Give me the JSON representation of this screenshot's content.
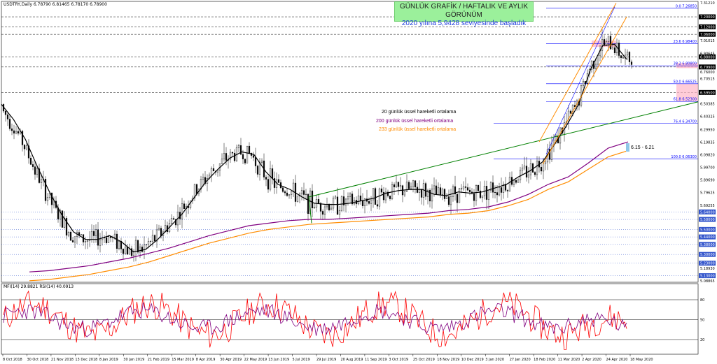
{
  "header": {
    "symbol_line": "USDTRY,Daily  6.78790 6.81465 6.78170 6.78900",
    "indicator_line": "MFI(14) 29.8821  RSI(14) 40.0913"
  },
  "banner": {
    "line1": "GÜNLÜK GRAFİK / HAFTALIK VE AYLIK GÖRÜNÜM",
    "line2": "2020 yılına 5,9428 seviyesinde başladık"
  },
  "legend": {
    "ema20": "20 günlük üssel hareketli ortalama",
    "ema200": "200 günlük üssel hareketli ortalama",
    "ema233": "233 günlük üssel hareketli ortalama"
  },
  "annotation": "6.15 - 6.21",
  "colors": {
    "price": "#000000",
    "ema20": "#000000",
    "ema200": "#800080",
    "ema233": "#ff8c00",
    "trendline": "#008000",
    "channel": "#ff8c00",
    "mfi": "#ff0000",
    "rsi": "#800080",
    "fib": "#0000ff",
    "pink_zone": "#ffb6c8",
    "banner_bg": "#9bf09b"
  },
  "chart_data": {
    "type": "line",
    "title": "USDTRY,Daily",
    "x_ticks": [
      "8 Oct 2018",
      "30 Oct 2018",
      "21 Nov 2018",
      "13 Dec 2018",
      "8 Jan 2019",
      "30 Jan 2019",
      "21 Feb 2019",
      "15 Mar 2019",
      "8 Apr 2019",
      "30 Apr 2019",
      "22 May 2019",
      "13 Jun 2019",
      "5 Jul 2019",
      "29 Jul 2019",
      "20 Aug 2019",
      "11 Sep 2019",
      "3 Oct 2019",
      "25 Oct 2019",
      "18 Nov 2019",
      "10 Dec 2019",
      "3 Jan 2020",
      "27 Jan 2020",
      "18 Feb 2020",
      "11 Mar 2020",
      "2 Apr 2020",
      "24 Apr 2020",
      "18 May 2020"
    ],
    "y_ticks": [
      "7.31210",
      "7.20000",
      "7.12000",
      "7.06000",
      "7.01015",
      "6.90645",
      "6.88000",
      "6.79900",
      "6.76000",
      "6.70515",
      "6.59500",
      "6.50385",
      "6.40325",
      "6.29950",
      "6.19835",
      "6.09820",
      "5.99700",
      "5.89690",
      "5.79625",
      "5.69255",
      "5.64000",
      "5.58000",
      "5.50000",
      "5.44000",
      "5.38000",
      "5.30000",
      "5.23000",
      "5.18930",
      "5.13000",
      "5.08865"
    ],
    "ylim": [
      5.08865,
      7.3121
    ],
    "fib_levels": [
      {
        "label": "0.0 7.26850",
        "value": 7.2685
      },
      {
        "label": "23.6 6.98400",
        "value": 6.984
      },
      {
        "label": "38.2 6.80800",
        "value": 6.808
      },
      {
        "label": "50.0 6.66525",
        "value": 6.66525
      },
      {
        "label": "61.8 6.52300",
        "value": 6.523
      },
      {
        "label": "76.4 6.34700",
        "value": 6.347
      },
      {
        "label": "100.0 6.06300",
        "value": 6.063
      }
    ],
    "horizontal_levels": [
      7.2,
      7.12,
      7.06,
      6.88,
      6.799,
      6.595,
      5.64,
      5.58,
      5.5,
      5.44,
      5.38,
      5.3,
      5.23,
      5.13
    ],
    "series": [
      {
        "name": "20 günlük üssel hareketli ortalama",
        "values": [
          6.5,
          6.38,
          6.22,
          6.0,
          5.8,
          5.62,
          5.48,
          5.42,
          5.42,
          5.45,
          5.4,
          5.32,
          5.34,
          5.42,
          5.52,
          5.62,
          5.75,
          5.88,
          5.98,
          6.07,
          6.12,
          6.1,
          5.96,
          5.86,
          5.82,
          5.76,
          5.71,
          5.7,
          5.7,
          5.71,
          5.73,
          5.75,
          5.79,
          5.81,
          5.82,
          5.82,
          5.78,
          5.77,
          5.8,
          5.79,
          5.8,
          5.83,
          5.86,
          5.92,
          5.97,
          6.04,
          6.18,
          6.33,
          6.5,
          6.78,
          6.97,
          6.98,
          6.86
        ]
      },
      {
        "name": "200 günlük üssel hareketli ortalama",
        "values": [
          5.16,
          5.17,
          5.19,
          5.21,
          5.24,
          5.27,
          5.31,
          5.35,
          5.4,
          5.45,
          5.49,
          5.53,
          5.55,
          5.57,
          5.58,
          5.58,
          5.59,
          5.6,
          5.61,
          5.62,
          5.63,
          5.65,
          5.66,
          5.68,
          5.72,
          5.78,
          5.86,
          5.92,
          6.03,
          6.15,
          6.2
        ]
      },
      {
        "name": "233 günlük üssel hareketli ortalama",
        "values": [
          5.09,
          5.1,
          5.12,
          5.14,
          5.17,
          5.2,
          5.24,
          5.29,
          5.34,
          5.39,
          5.43,
          5.47,
          5.5,
          5.52,
          5.54,
          5.55,
          5.56,
          5.57,
          5.58,
          5.59,
          5.6,
          5.62,
          5.63,
          5.65,
          5.69,
          5.74,
          5.82,
          5.88,
          5.98,
          6.08,
          6.13
        ]
      }
    ]
  }
}
